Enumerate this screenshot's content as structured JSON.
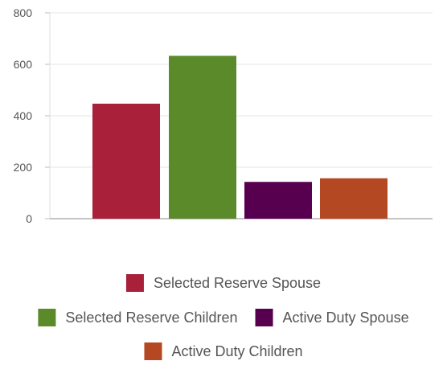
{
  "chart_data": {
    "type": "bar",
    "title": "",
    "xlabel": "",
    "ylabel": "",
    "ylim": [
      0,
      800
    ],
    "yticks": [
      0,
      200,
      400,
      600,
      800
    ],
    "grid": true,
    "legend_position": "bottom",
    "series": [
      {
        "name": "Selected Reserve Spouse",
        "value": 447,
        "color": "#a8203a"
      },
      {
        "name": "Selected Reserve Children",
        "value": 633,
        "color": "#5b8a2b"
      },
      {
        "name": "Active Duty Spouse",
        "value": 143,
        "color": "#57004f"
      },
      {
        "name": "Active Duty Children",
        "value": 157,
        "color": "#b34822"
      }
    ]
  }
}
